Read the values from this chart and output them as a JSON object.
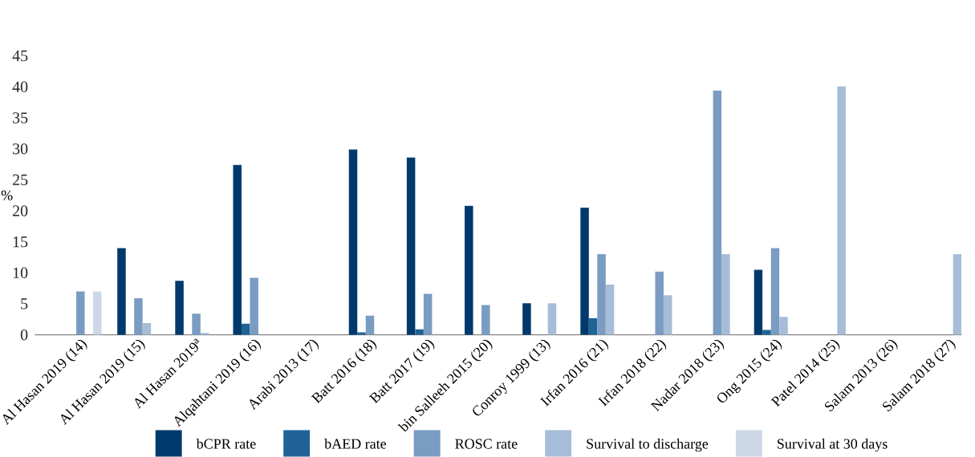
{
  "chart_data": {
    "type": "bar",
    "ylabel": "%",
    "categories": [
      "Al Hasan 2019 (14)",
      "Al Hasan 2019 (15)",
      "Al Hasan 2019$^{a}$",
      "Alqahtani 2019 (16)",
      "Arabi 2013 (17)",
      "Batt 2016 (18)",
      "Batt 2017 (19)",
      "bin Salleeh 2015 (20)",
      "Conroy 1999 (13)",
      "Irfan 2016 (21)",
      "Irfan 2018 (22)",
      "Nadar 2018 (23)",
      "Ong 2015 (24)",
      "Patel 2014 (25)",
      "Salam 2013 (26)",
      "Salam 2018 (27)"
    ],
    "series": [
      {
        "name": "bCPR rate",
        "color": "#003a6c",
        "values": [
          null,
          14.0,
          8.7,
          27.4,
          null,
          29.9,
          28.6,
          20.8,
          5.1,
          20.5,
          null,
          null,
          10.5,
          null,
          null,
          null
        ]
      },
      {
        "name": "bAED rate",
        "color": "#1f6396",
        "values": [
          null,
          null,
          null,
          1.8,
          null,
          0.4,
          0.9,
          null,
          null,
          2.7,
          null,
          null,
          0.8,
          null,
          null,
          null
        ]
      },
      {
        "name": "ROSC rate",
        "color": "#7a9cc2",
        "values": [
          7.0,
          5.9,
          3.4,
          9.2,
          null,
          3.1,
          6.6,
          4.8,
          null,
          13.0,
          10.2,
          39.4,
          14.0,
          null,
          null,
          null
        ]
      },
      {
        "name": "Survival to discharge",
        "color": "#a7bcd7",
        "values": [
          null,
          1.9,
          0.3,
          null,
          null,
          null,
          null,
          null,
          5.1,
          8.1,
          6.4,
          13.0,
          2.9,
          40.1,
          null,
          13.0
        ]
      },
      {
        "name": "Survival at 30 days",
        "color": "#cdd8e6",
        "values": [
          7.0,
          null,
          null,
          null,
          null,
          null,
          null,
          null,
          null,
          null,
          null,
          null,
          null,
          null,
          null,
          null
        ]
      }
    ],
    "ylim": [
      0,
      45
    ],
    "yticks": [
      0,
      5,
      10,
      15,
      20,
      25,
      30,
      35,
      40,
      45
    ],
    "legend": "bottom"
  }
}
